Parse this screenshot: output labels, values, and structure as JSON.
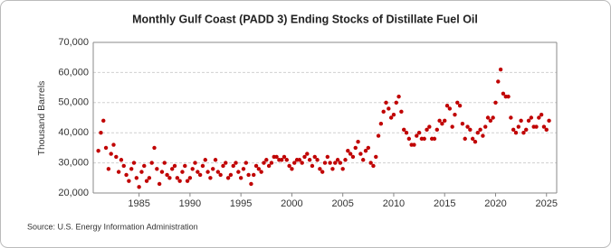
{
  "chart_data": {
    "type": "scatter",
    "title": "Monthly Gulf Coast (PADD 3) Ending Stocks of Distillate Fuel Oil",
    "y_label": "Thousand Barrels",
    "source": "Source: U.S. Energy Information Administration",
    "color": "#c00000",
    "grid": true,
    "xlim": [
      1980.5,
      2026
    ],
    "xticks": [
      1985,
      1990,
      1995,
      2000,
      2005,
      2010,
      2015,
      2020,
      2025
    ],
    "ylim": [
      20000,
      70000
    ],
    "yticks": [
      {
        "value": 20000,
        "label": "20,000"
      },
      {
        "value": 30000,
        "label": "30,000"
      },
      {
        "value": 40000,
        "label": "40,000"
      },
      {
        "value": 50000,
        "label": "50,000"
      },
      {
        "value": 60000,
        "label": "60,000"
      },
      {
        "value": 70000,
        "label": "70,000"
      }
    ],
    "x": [
      1981,
      1981.25,
      1981.5,
      1981.75,
      1982,
      1982.25,
      1982.5,
      1982.75,
      1983,
      1983.25,
      1983.5,
      1983.75,
      1984,
      1984.25,
      1984.5,
      1984.75,
      1985,
      1985.25,
      1985.5,
      1985.75,
      1986,
      1986.25,
      1986.5,
      1986.75,
      1987,
      1987.25,
      1987.5,
      1987.75,
      1988,
      1988.25,
      1988.5,
      1988.75,
      1989,
      1989.25,
      1989.5,
      1989.75,
      1990,
      1990.25,
      1990.5,
      1990.75,
      1991,
      1991.25,
      1991.5,
      1991.75,
      1992,
      1992.25,
      1992.5,
      1992.75,
      1993,
      1993.25,
      1993.5,
      1993.75,
      1994,
      1994.25,
      1994.5,
      1994.75,
      1995,
      1995.25,
      1995.5,
      1995.75,
      1996,
      1996.25,
      1996.5,
      1996.75,
      1997,
      1997.25,
      1997.5,
      1997.75,
      1998,
      1998.25,
      1998.5,
      1998.75,
      1999,
      1999.25,
      1999.5,
      1999.75,
      2000,
      2000.25,
      2000.5,
      2000.75,
      2001,
      2001.25,
      2001.5,
      2001.75,
      2002,
      2002.25,
      2002.5,
      2002.75,
      2003,
      2003.25,
      2003.5,
      2003.75,
      2004,
      2004.25,
      2004.5,
      2004.75,
      2005,
      2005.25,
      2005.5,
      2005.75,
      2006,
      2006.25,
      2006.5,
      2006.75,
      2007,
      2007.25,
      2007.5,
      2007.75,
      2008,
      2008.25,
      2008.5,
      2008.75,
      2009,
      2009.25,
      2009.5,
      2009.75,
      2010,
      2010.25,
      2010.5,
      2010.75,
      2011,
      2011.25,
      2011.5,
      2011.75,
      2012,
      2012.25,
      2012.5,
      2012.75,
      2013,
      2013.25,
      2013.5,
      2013.75,
      2014,
      2014.25,
      2014.5,
      2014.75,
      2015,
      2015.25,
      2015.5,
      2015.75,
      2016,
      2016.25,
      2016.5,
      2016.75,
      2017,
      2017.25,
      2017.5,
      2017.75,
      2018,
      2018.25,
      2018.5,
      2018.75,
      2019,
      2019.25,
      2019.5,
      2019.75,
      2020,
      2020.25,
      2020.5,
      2020.75,
      2021,
      2021.25,
      2021.5,
      2021.75,
      2022,
      2022.25,
      2022.5,
      2022.75,
      2023,
      2023.25,
      2023.5,
      2023.75,
      2024,
      2024.25,
      2024.5,
      2024.75,
      2025,
      2025.25
    ],
    "values": [
      34000,
      40000,
      44000,
      35000,
      28000,
      33000,
      36000,
      32000,
      27000,
      31000,
      29000,
      26000,
      24000,
      28000,
      30000,
      25000,
      22000,
      27000,
      29000,
      24000,
      25000,
      30000,
      35000,
      28000,
      23000,
      27000,
      30000,
      26000,
      25000,
      28000,
      29000,
      25000,
      24000,
      27000,
      29000,
      24000,
      25000,
      28000,
      30000,
      27000,
      26000,
      29000,
      31000,
      27000,
      25000,
      28000,
      31000,
      27000,
      26000,
      29000,
      30000,
      25000,
      26000,
      29000,
      30000,
      27000,
      25000,
      28000,
      30000,
      26000,
      23000,
      26000,
      29000,
      28000,
      27000,
      30000,
      31000,
      29000,
      30000,
      32000,
      32000,
      31000,
      31000,
      32000,
      31000,
      29000,
      28000,
      30000,
      31000,
      31000,
      30000,
      32000,
      33000,
      31000,
      29000,
      32000,
      31000,
      28000,
      27000,
      30000,
      32000,
      30000,
      28000,
      30000,
      31000,
      30000,
      28000,
      31000,
      34000,
      33000,
      32000,
      35000,
      37000,
      33000,
      31000,
      34000,
      35000,
      30000,
      29000,
      32000,
      39000,
      43000,
      47000,
      50000,
      48000,
      45000,
      46000,
      50000,
      52000,
      47000,
      41000,
      40000,
      38000,
      36000,
      36000,
      39000,
      40000,
      38000,
      38000,
      41000,
      42000,
      38000,
      38000,
      41000,
      44000,
      43000,
      44000,
      49000,
      48000,
      42000,
      46000,
      50000,
      49000,
      43000,
      38000,
      42000,
      41000,
      38000,
      37000,
      40000,
      41000,
      39000,
      42000,
      45000,
      44000,
      45000,
      50000,
      57000,
      61000,
      53000,
      52000,
      52000,
      45000,
      41000,
      40000,
      42000,
      44000,
      40000,
      41000,
      44000,
      45000,
      42000,
      42000,
      45000,
      46000,
      42000,
      41000,
      44000
    ]
  }
}
